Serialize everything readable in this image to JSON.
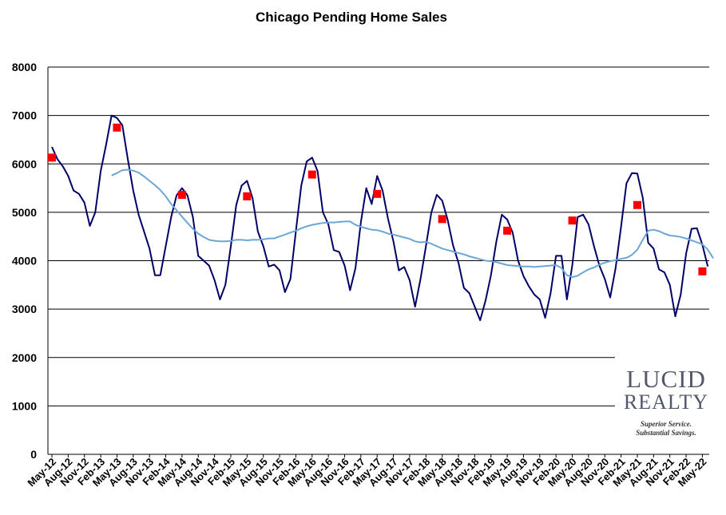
{
  "chart_data": {
    "type": "line",
    "title": "Chicago Pending Home Sales",
    "xlabel": "",
    "ylabel": "",
    "ylim": [
      0,
      8000
    ],
    "yticks": [
      0,
      1000,
      2000,
      3000,
      4000,
      5000,
      6000,
      7000,
      8000
    ],
    "grid": "horizontal",
    "x_labels": [
      "May-12",
      "Aug-12",
      "Nov-12",
      "Feb-13",
      "May-13",
      "Aug-13",
      "Nov-13",
      "Feb-14",
      "May-14",
      "Aug-14",
      "Nov-14",
      "Feb-15",
      "May-15",
      "Aug-15",
      "Nov-15",
      "Feb-16",
      "May-16",
      "Aug-16",
      "Nov-16",
      "Feb-17",
      "May-17",
      "Aug-17",
      "Nov-17",
      "Feb-18",
      "May-18",
      "Aug-18",
      "Nov-18",
      "Feb-19",
      "May-19",
      "Aug-19",
      "Nov-19",
      "Feb-20",
      "May-20",
      "Aug-20",
      "Nov-20",
      "Feb-21",
      "May-21",
      "Aug-21",
      "Nov-21",
      "Feb-22",
      "May-22"
    ],
    "monthly_start": "May-12",
    "series": [
      {
        "color": "#000066",
        "style": "line",
        "values": [
          6350,
          6100,
          5950,
          5750,
          5450,
          5380,
          5200,
          4720,
          5000,
          5850,
          6400,
          7000,
          6950,
          6800,
          6100,
          5450,
          4950,
          4600,
          4250,
          3700,
          3700,
          4300,
          4900,
          5350,
          5500,
          5350,
          4900,
          4100,
          4000,
          3900,
          3600,
          3200,
          3500,
          4300,
          5150,
          5550,
          5650,
          5300,
          4600,
          4300,
          3880,
          3920,
          3800,
          3350,
          3620,
          4600,
          5550,
          6050,
          6130,
          5850,
          5000,
          4750,
          4220,
          4180,
          3900,
          3390,
          3850,
          4800,
          5500,
          5170,
          5750,
          5450,
          4870,
          4400,
          3800,
          3870,
          3600,
          3050,
          3620,
          4300,
          5000,
          5360,
          5240,
          4850,
          4320,
          3960,
          3440,
          3330,
          3050,
          2770,
          3180,
          3700,
          4400,
          4950,
          4850,
          4580,
          4000,
          3680,
          3470,
          3300,
          3200,
          2820,
          3330,
          4100,
          4100,
          3200,
          3900,
          4900,
          4950,
          4750,
          4300,
          3900,
          3620,
          3240,
          3850,
          4700,
          5600,
          5810,
          5800,
          5300,
          4370,
          4250,
          3820,
          3760,
          3500,
          2850,
          3300,
          4150,
          4660,
          4670,
          4330,
          3880
        ]
      },
      {
        "color": "#6ba7d6",
        "style": "line",
        "values": [
          null,
          null,
          null,
          null,
          null,
          null,
          null,
          null,
          null,
          null,
          null,
          5760,
          5810,
          5870,
          5880,
          5860,
          5820,
          5740,
          5650,
          5560,
          5460,
          5330,
          5170,
          5040,
          4910,
          4780,
          4660,
          4560,
          4490,
          4430,
          4410,
          4400,
          4400,
          4410,
          4430,
          4430,
          4420,
          4430,
          4430,
          4440,
          4460,
          4460,
          4500,
          4540,
          4580,
          4620,
          4670,
          4710,
          4740,
          4760,
          4780,
          4790,
          4790,
          4800,
          4810,
          4810,
          4740,
          4700,
          4670,
          4640,
          4630,
          4600,
          4560,
          4540,
          4510,
          4480,
          4450,
          4400,
          4380,
          4390,
          4350,
          4300,
          4250,
          4220,
          4190,
          4160,
          4130,
          4090,
          4060,
          4030,
          4000,
          3990,
          3970,
          3940,
          3910,
          3900,
          3890,
          3880,
          3880,
          3870,
          3880,
          3890,
          3900,
          3910,
          3850,
          3700,
          3660,
          3690,
          3760,
          3820,
          3860,
          3920,
          3960,
          3990,
          4010,
          4040,
          4060,
          4120,
          4230,
          4430,
          4620,
          4640,
          4610,
          4560,
          4520,
          4510,
          4490,
          4460,
          4420,
          4380,
          4340,
          4230,
          4050
        ]
      },
      {
        "color": "#ff0000",
        "style": "marker",
        "points": [
          {
            "x": "May-12",
            "y": 6130
          },
          {
            "x": "May-13",
            "y": 6750
          },
          {
            "x": "May-14",
            "y": 5360
          },
          {
            "x": "May-15",
            "y": 5330
          },
          {
            "x": "May-16",
            "y": 5780
          },
          {
            "x": "May-17",
            "y": 5380
          },
          {
            "x": "May-18",
            "y": 4860
          },
          {
            "x": "May-19",
            "y": 4620
          },
          {
            "x": "May-20",
            "y": 4830
          },
          {
            "x": "May-21",
            "y": 5150
          },
          {
            "x": "May-22",
            "y": 3780
          }
        ]
      }
    ]
  },
  "logo": {
    "line1": "LUCID",
    "line2": "REALTY",
    "tagline1": "Superior Service.",
    "tagline2": "Substantial Savings."
  }
}
